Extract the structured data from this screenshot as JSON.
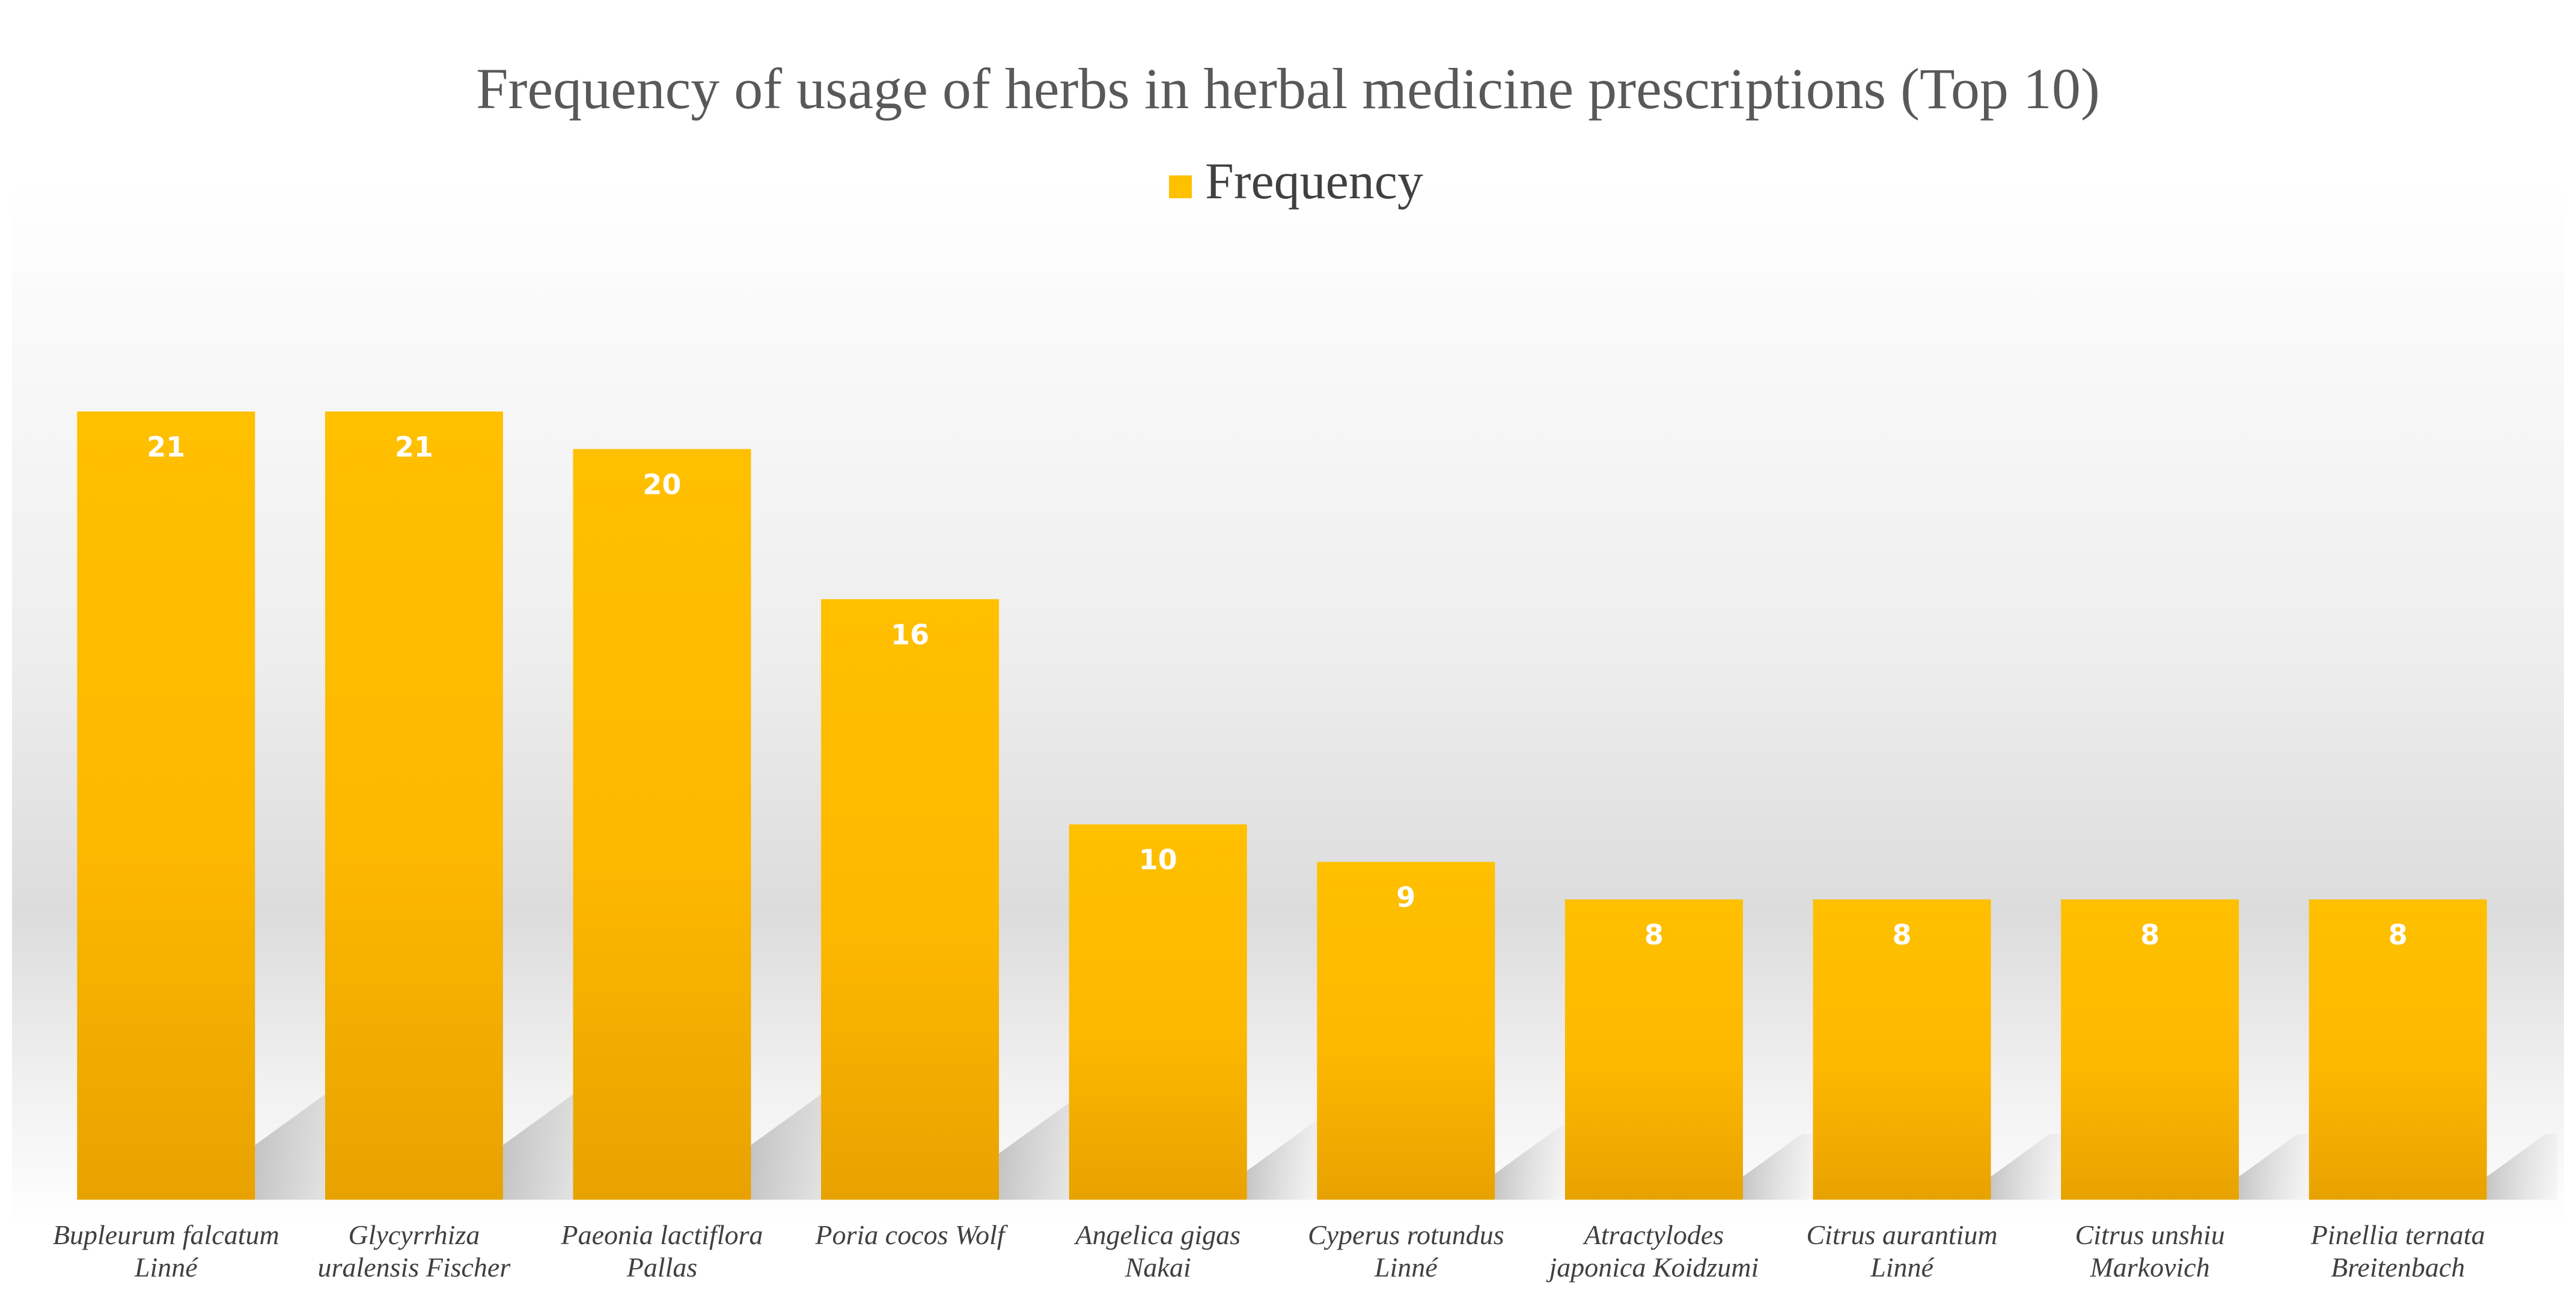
{
  "chart_data": {
    "type": "bar",
    "title": "Frequency of usage of herbs in herbal medicine prescriptions (Top 10)",
    "legend": {
      "position": "top",
      "entries": [
        "Frequency"
      ]
    },
    "categories": [
      [
        "Bupleurum falcatum",
        "Linné"
      ],
      [
        "Glycyrrhiza",
        "uralensis Fischer"
      ],
      [
        "Paeonia lactiflora",
        "Pallas"
      ],
      [
        "Poria cocos Wolf"
      ],
      [
        "Angelica gigas",
        "Nakai"
      ],
      [
        "Cyperus rotundus",
        "Linné"
      ],
      [
        "Atractylodes",
        "japonica Koidzumi"
      ],
      [
        "Citrus aurantium",
        "Linné"
      ],
      [
        "Citrus unshiu",
        "Markovich"
      ],
      [
        "Pinellia ternata",
        "Breitenbach"
      ]
    ],
    "series": [
      {
        "name": "Frequency",
        "values": [
          21,
          21,
          20,
          16,
          10,
          9,
          8,
          8,
          8,
          8
        ]
      }
    ],
    "data_labels": [
      "21",
      "21",
      "20",
      "16",
      "10",
      "9",
      "8",
      "8",
      "8",
      "8"
    ],
    "xlabel": "",
    "ylabel": "",
    "ylim": [
      0,
      21
    ],
    "grid": false,
    "colors": {
      "bar_top": "#FFC000",
      "bar_bottom": "#E8A200",
      "background_mid": "#D9D9D9",
      "background_edge": "#FFFFFF",
      "data_label": "#FFFFFF",
      "title": "#595959"
    }
  }
}
